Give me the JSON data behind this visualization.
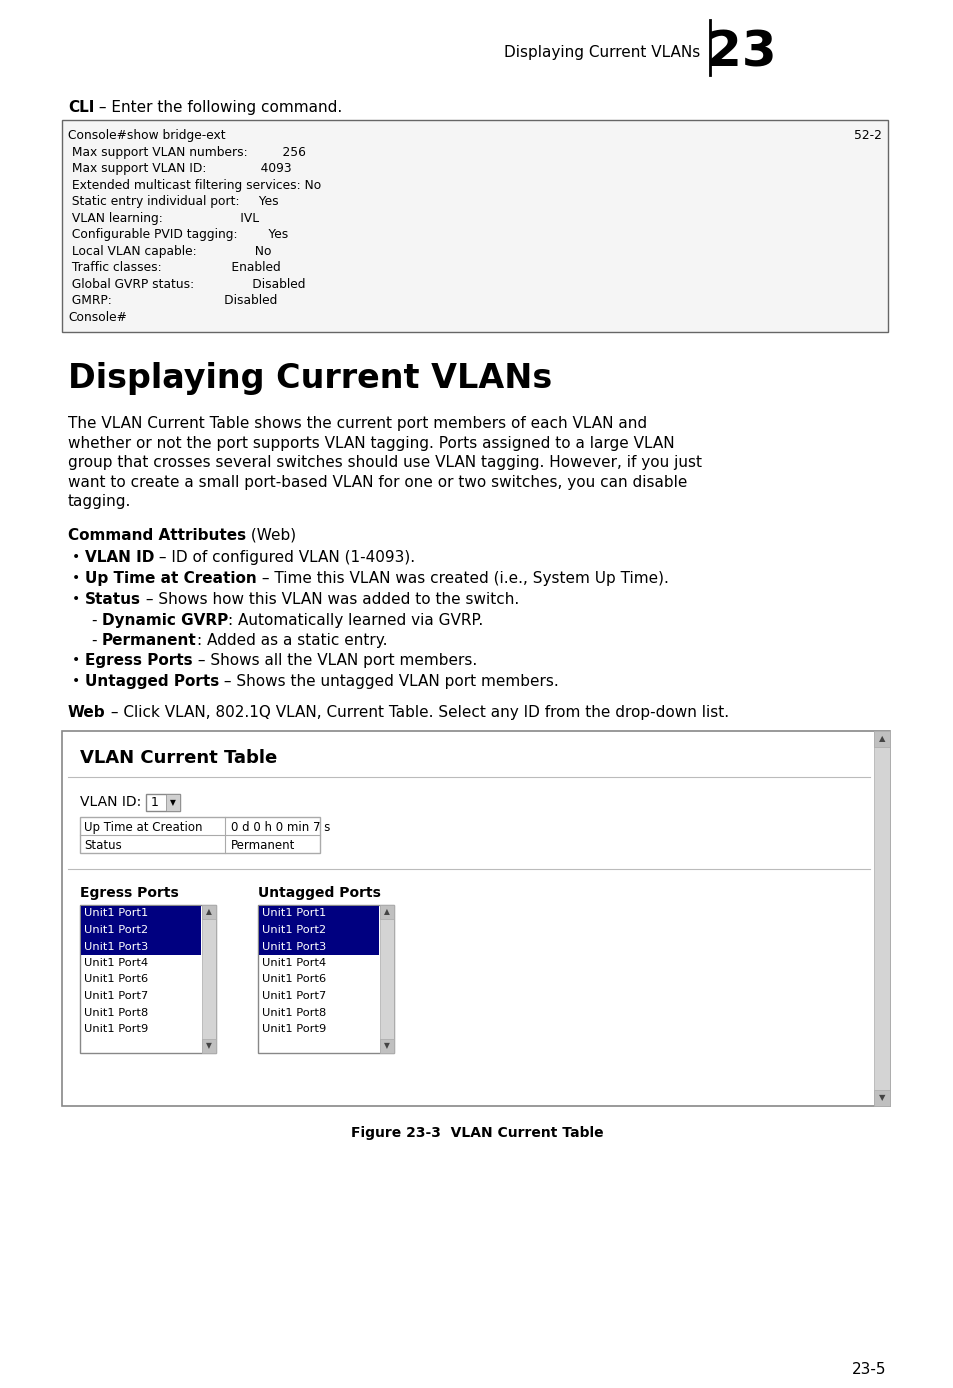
{
  "page_bg": "#ffffff",
  "header_text": "Displaying Current VLANs",
  "chapter_num": "23",
  "page_num": "23-5",
  "cli_label": "CLI",
  "cli_intro": " – Enter the following command.",
  "console_lines": [
    [
      "Console#show bridge-ext",
      "52-2"
    ],
    [
      " Max support VLAN numbers:         256",
      ""
    ],
    [
      " Max support VLAN ID:              4093",
      ""
    ],
    [
      " Extended multicast filtering services: No",
      ""
    ],
    [
      " Static entry individual port:     Yes",
      ""
    ],
    [
      " VLAN learning:                    IVL",
      ""
    ],
    [
      " Configurable PVID tagging:        Yes",
      ""
    ],
    [
      " Local VLAN capable:               No",
      ""
    ],
    [
      " Traffic classes:                  Enabled",
      ""
    ],
    [
      " Global GVRP status:               Disabled",
      ""
    ],
    [
      " GMRP:                             Disabled",
      ""
    ],
    [
      "Console#",
      ""
    ]
  ],
  "section_title": "Displaying Current VLANs",
  "body_paragraph": "The VLAN Current Table shows the current port members of each VLAN and whether or not the port supports VLAN tagging. Ports assigned to a large VLAN group that crosses several switches should use VLAN tagging. However, if you just want to create a small port-based VLAN for one or two switches, you can disable tagging.",
  "body_lines": [
    "The VLAN Current Table shows the current port members of each VLAN and",
    "whether or not the port supports VLAN tagging. Ports assigned to a large VLAN",
    "group that crosses several switches should use VLAN tagging. However, if you just",
    "want to create a small port-based VLAN for one or two switches, you can disable",
    "tagging."
  ],
  "cmd_attr_bold": "Command Attributes",
  "cmd_attr_normal": " (Web)",
  "bullets": [
    {
      "bold": "VLAN ID",
      "normal": " – ID of configured VLAN (1-4093)."
    },
    {
      "bold": "Up Time at Creation",
      "normal": " – Time this VLAN was created (i.e., System Up Time)."
    },
    {
      "bold": "Status",
      "normal": " – Shows how this VLAN was added to the switch.",
      "sub": [
        {
          "bold": "Dynamic GVRP",
          "normal": ": Automatically learned via GVRP."
        },
        {
          "bold": "Permanent",
          "normal": ": Added as a static entry."
        }
      ]
    },
    {
      "bold": "Egress Ports",
      "normal": " – Shows all the VLAN port members."
    },
    {
      "bold": "Untagged Ports",
      "normal": " – Shows the untagged VLAN port members."
    }
  ],
  "web_bold": "Web",
  "web_normal": " – Click VLAN, 802.1Q VLAN, Current Table. Select any ID from the drop-down list.",
  "figure_caption": "Figure 23-3  VLAN Current Table",
  "vlan_table_title": "VLAN Current Table",
  "vlan_id_label": "VLAN ID:",
  "vlan_id_value": "1",
  "table_rows": [
    [
      "Up Time at Creation",
      "0 d 0 h 0 min 7 s"
    ],
    [
      "Status",
      "Permanent"
    ]
  ],
  "egress_label": "Egress Ports",
  "untagged_label": "Untagged Ports",
  "port_list": [
    "Unit1 Port1",
    "Unit1 Port2",
    "Unit1 Port3",
    "Unit1 Port4",
    "Unit1 Port6",
    "Unit1 Port7",
    "Unit1 Port8",
    "Unit1 Port9"
  ]
}
